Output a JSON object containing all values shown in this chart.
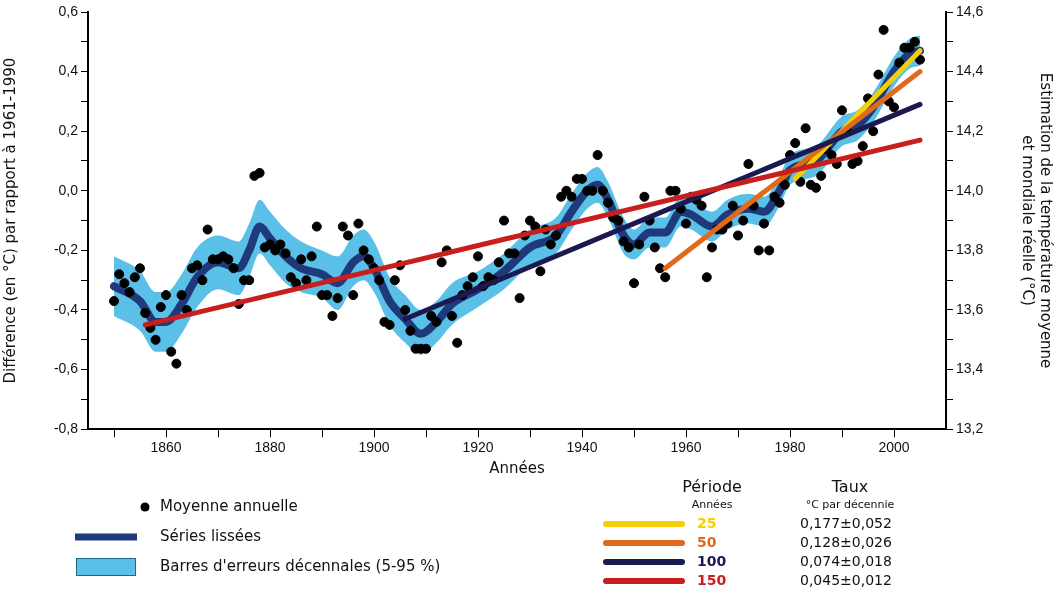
{
  "chart_data": {
    "type": "line",
    "xlabel": "Années",
    "ylabel": "Différence (en °C) par rapport à 1961-1990",
    "y2label": "Estimation de la température moyenne\net mondiale réelle (°C)",
    "legend_title": "Période",
    "xlim": [
      1845,
      2010
    ],
    "xticks": [
      {
        "value": 1850,
        "label": null
      },
      1860,
      {
        "value": 1870,
        "label": null
      },
      1880,
      {
        "value": 1890,
        "label": null
      },
      1900,
      {
        "value": 1910,
        "label": null
      },
      1920,
      {
        "value": 1930,
        "label": null
      },
      1940,
      {
        "value": 1950,
        "label": null
      },
      1960,
      {
        "value": 1970,
        "label": null
      },
      1980,
      {
        "value": 1990,
        "label": null
      },
      2000
    ],
    "ylim": [
      -0.8,
      0.6
    ],
    "yticks": [
      {
        "value": -0.8,
        "label": "-0,8"
      },
      {
        "value": -0.7,
        "label": null
      },
      {
        "value": -0.6,
        "label": "-0,6"
      },
      {
        "value": -0.5,
        "label": null
      },
      {
        "value": -0.4,
        "label": "-0,4"
      },
      {
        "value": -0.3,
        "label": null
      },
      {
        "value": -0.2,
        "label": "-0,2"
      },
      {
        "value": -0.1,
        "label": null
      },
      {
        "value": 0,
        "label": "0,0"
      },
      {
        "value": 0.1,
        "label": null
      },
      {
        "value": 0.2,
        "label": "0,2"
      },
      {
        "value": 0.3,
        "label": null
      },
      {
        "value": 0.4,
        "label": "0,4"
      },
      {
        "value": 0.5,
        "label": null
      },
      {
        "value": 0.6,
        "label": "0,6"
      }
    ],
    "y2lim": [
      13.2,
      14.6
    ],
    "y2ticks": [
      {
        "value": 13.2,
        "label": "13,2"
      },
      {
        "value": 13.3,
        "label": null
      },
      {
        "value": 13.4,
        "label": "13,4"
      },
      {
        "value": 13.5,
        "label": null
      },
      {
        "value": 13.6,
        "label": "13,6"
      },
      {
        "value": 13.7,
        "label": null
      },
      {
        "value": 13.8,
        "label": "13,8"
      },
      {
        "value": 13.9,
        "label": null
      },
      {
        "value": 14.0,
        "label": "14,0"
      },
      {
        "value": 14.1,
        "label": null
      },
      {
        "value": 14.2,
        "label": "14,2"
      },
      {
        "value": 14.3,
        "label": null
      },
      {
        "value": 14.4,
        "label": "14,4"
      },
      {
        "value": 14.5,
        "label": null
      },
      {
        "value": 14.6,
        "label": "14,6"
      }
    ],
    "grid": false,
    "legend": "bottom",
    "line_style": "solid",
    "annotations": [
      "Barres d'erreurs décennales (5-95 %)",
      "Années",
      "Taux",
      "°C par décennie",
      "0,177±0,052",
      "0,128±0,026",
      "0,074±0,018",
      "0,045±0,012"
    ],
    "series": [
      {
        "name": "Moyenne annuelle",
        "type": "scatter",
        "color": "#000000",
        "marker": "circle",
        "x": [
          1850,
          1851,
          1852,
          1853,
          1854,
          1855,
          1856,
          1857,
          1858,
          1859,
          1860,
          1861,
          1862,
          1863,
          1864,
          1865,
          1866,
          1867,
          1868,
          1869,
          1870,
          1871,
          1872,
          1873,
          1874,
          1875,
          1876,
          1877,
          1878,
          1879,
          1880,
          1881,
          1882,
          1883,
          1884,
          1885,
          1886,
          1887,
          1888,
          1889,
          1890,
          1891,
          1892,
          1893,
          1894,
          1895,
          1896,
          1897,
          1898,
          1899,
          1900,
          1901,
          1902,
          1903,
          1904,
          1905,
          1906,
          1907,
          1908,
          1909,
          1910,
          1911,
          1912,
          1913,
          1914,
          1915,
          1916,
          1917,
          1918,
          1919,
          1920,
          1921,
          1922,
          1923,
          1924,
          1925,
          1926,
          1927,
          1928,
          1929,
          1930,
          1931,
          1932,
          1933,
          1934,
          1935,
          1936,
          1937,
          1938,
          1939,
          1940,
          1941,
          1942,
          1943,
          1944,
          1945,
          1946,
          1947,
          1948,
          1949,
          1950,
          1951,
          1952,
          1953,
          1954,
          1955,
          1956,
          1957,
          1958,
          1959,
          1960,
          1961,
          1962,
          1963,
          1964,
          1965,
          1966,
          1967,
          1968,
          1969,
          1970,
          1971,
          1972,
          1973,
          1974,
          1975,
          1976,
          1977,
          1978,
          1979,
          1980,
          1981,
          1982,
          1983,
          1984,
          1985,
          1986,
          1987,
          1988,
          1989,
          1990,
          1991,
          1992,
          1993,
          1994,
          1995,
          1996,
          1997,
          1998,
          1999,
          2000,
          2001,
          2002,
          2003,
          2004,
          2005
        ],
        "values": [
          -0.37,
          -0.28,
          -0.31,
          -0.34,
          -0.29,
          -0.26,
          -0.41,
          -0.46,
          -0.5,
          -0.39,
          -0.35,
          -0.54,
          -0.58,
          -0.35,
          -0.4,
          -0.26,
          -0.25,
          -0.3,
          -0.13,
          -0.23,
          -0.23,
          -0.22,
          -0.23,
          -0.26,
          -0.38,
          -0.3,
          -0.3,
          0.05,
          0.06,
          -0.19,
          -0.18,
          -0.2,
          -0.18,
          -0.21,
          -0.29,
          -0.31,
          -0.23,
          -0.3,
          -0.22,
          -0.12,
          -0.35,
          -0.35,
          -0.42,
          -0.36,
          -0.12,
          -0.15,
          -0.35,
          -0.11,
          -0.2,
          -0.23,
          -0.26,
          -0.3,
          -0.44,
          -0.45,
          -0.3,
          -0.25,
          -0.4,
          -0.47,
          -0.53,
          -0.53,
          -0.53,
          -0.42,
          -0.44,
          -0.24,
          -0.2,
          -0.42,
          -0.51,
          -0.35,
          -0.32,
          -0.29,
          -0.22,
          -0.32,
          -0.29,
          -0.3,
          -0.24,
          -0.1,
          -0.21,
          -0.21,
          -0.36,
          -0.15,
          -0.1,
          -0.12,
          -0.27,
          -0.13,
          -0.18,
          -0.15,
          -0.02,
          0.0,
          -0.02,
          0.04,
          0.04,
          0.0,
          0.0,
          0.12,
          0.0,
          -0.04,
          -0.09,
          -0.1,
          -0.17,
          -0.19,
          -0.31,
          -0.18,
          -0.02,
          -0.1,
          -0.19,
          -0.26,
          -0.29,
          0.0,
          0.0,
          -0.06,
          -0.11,
          -0.02,
          -0.03,
          -0.05,
          -0.29,
          -0.19,
          -0.13,
          -0.13,
          -0.11,
          -0.05,
          -0.15,
          -0.1,
          0.09,
          -0.05,
          -0.2,
          -0.11,
          -0.2,
          -0.02,
          -0.04,
          0.02,
          0.12,
          0.16,
          0.03,
          0.21,
          0.02,
          0.01,
          0.05,
          0.14,
          0.12,
          0.09,
          0.27,
          0.2,
          0.09,
          0.1,
          0.15,
          0.31,
          0.2,
          0.39,
          0.54,
          0.3,
          0.28,
          0.43,
          0.48,
          0.48,
          0.5,
          0.44
        ]
      },
      {
        "name": "Séries lissées",
        "color": "#1f3a7a",
        "x": [
          1850,
          1855,
          1858,
          1860,
          1863,
          1866,
          1870,
          1874,
          1876,
          1878,
          1880,
          1883,
          1886,
          1890,
          1893,
          1896,
          1898,
          1900,
          1903,
          1906,
          1909,
          1912,
          1915,
          1920,
          1925,
          1930,
          1935,
          1938,
          1941,
          1943,
          1945,
          1948,
          1950,
          1953,
          1956,
          1959,
          1961,
          1965,
          1968,
          1972,
          1975,
          1978,
          1980,
          1985,
          1990,
          1993,
          1996,
          2000,
          2003,
          2005
        ],
        "values": [
          -0.32,
          -0.37,
          -0.44,
          -0.44,
          -0.38,
          -0.29,
          -0.24,
          -0.26,
          -0.2,
          -0.12,
          -0.16,
          -0.22,
          -0.26,
          -0.28,
          -0.31,
          -0.24,
          -0.22,
          -0.26,
          -0.37,
          -0.43,
          -0.48,
          -0.44,
          -0.38,
          -0.33,
          -0.27,
          -0.19,
          -0.15,
          -0.07,
          0.0,
          0.02,
          -0.03,
          -0.15,
          -0.18,
          -0.14,
          -0.14,
          -0.07,
          -0.08,
          -0.12,
          -0.08,
          -0.06,
          -0.07,
          0.0,
          0.07,
          0.1,
          0.2,
          0.22,
          0.28,
          0.4,
          0.46,
          0.47
        ],
        "lower": [
          -0.42,
          -0.47,
          -0.54,
          -0.54,
          -0.48,
          -0.39,
          -0.33,
          -0.35,
          -0.29,
          -0.21,
          -0.25,
          -0.31,
          -0.34,
          -0.36,
          -0.4,
          -0.32,
          -0.3,
          -0.34,
          -0.45,
          -0.51,
          -0.55,
          -0.51,
          -0.45,
          -0.39,
          -0.33,
          -0.25,
          -0.21,
          -0.13,
          -0.06,
          -0.04,
          -0.09,
          -0.21,
          -0.23,
          -0.19,
          -0.19,
          -0.12,
          -0.13,
          -0.17,
          -0.13,
          -0.11,
          -0.12,
          -0.05,
          0.02,
          0.05,
          0.15,
          0.17,
          0.23,
          0.35,
          0.41,
          0.42
        ],
        "upper": [
          -0.22,
          -0.27,
          -0.34,
          -0.34,
          -0.28,
          -0.19,
          -0.15,
          -0.17,
          -0.11,
          -0.03,
          -0.07,
          -0.13,
          -0.17,
          -0.2,
          -0.22,
          -0.15,
          -0.13,
          -0.17,
          -0.29,
          -0.35,
          -0.4,
          -0.37,
          -0.31,
          -0.27,
          -0.21,
          -0.13,
          -0.09,
          -0.01,
          0.06,
          0.08,
          0.03,
          -0.09,
          -0.13,
          -0.09,
          -0.09,
          -0.02,
          -0.03,
          -0.07,
          -0.03,
          -0.01,
          -0.02,
          0.05,
          0.12,
          0.15,
          0.25,
          0.27,
          0.33,
          0.45,
          0.51,
          0.52
        ]
      },
      {
        "name": "150",
        "color": "#c81e1e",
        "x": [
          1856,
          2005
        ],
        "values": [
          -0.45,
          0.17
        ]
      },
      {
        "name": "100",
        "color": "#1a1a50",
        "x": [
          1906,
          2005
        ],
        "values": [
          -0.43,
          0.29
        ]
      },
      {
        "name": "50",
        "color": "#e06a1a",
        "x": [
          1956,
          2005
        ],
        "values": [
          -0.26,
          0.4
        ]
      },
      {
        "name": "25",
        "color": "#f5d000",
        "x": [
          1981,
          2005
        ],
        "values": [
          0.04,
          0.47
        ]
      }
    ]
  }
}
